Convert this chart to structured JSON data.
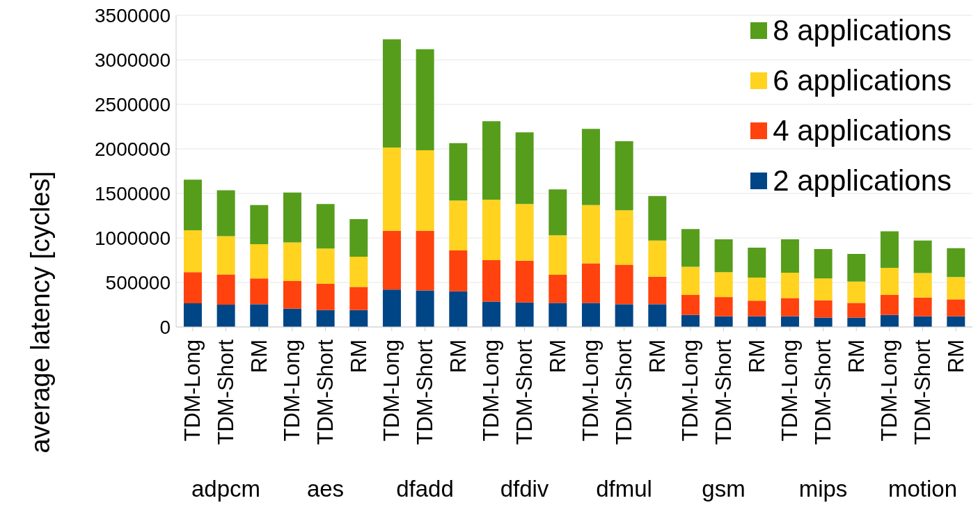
{
  "chart_data": {
    "type": "bar",
    "stacked": true,
    "ylabel": "average latency [cycles]",
    "categories": [
      "TDM-Long",
      "TDM-Short",
      "RM",
      "TDM-Long",
      "TDM-Short",
      "RM",
      "TDM-Long",
      "TDM-Short",
      "RM",
      "TDM-Long",
      "TDM-Short",
      "RM",
      "TDM-Long",
      "TDM-Short",
      "RM",
      "TDM-Long",
      "TDM-Short",
      "RM",
      "TDM-Long",
      "TDM-Short",
      "RM",
      "TDM-Long",
      "TDM-Short",
      "RM"
    ],
    "annotations": [
      "adpcm",
      "aes",
      "dfadd",
      "dfdiv",
      "dfmul",
      "gsm",
      "mips",
      "motion"
    ],
    "ylim": [
      0,
      3500000
    ],
    "yticks": [
      0,
      500000,
      1000000,
      1500000,
      2000000,
      2500000,
      3000000,
      3500000
    ],
    "grid": "y",
    "legend": "top right",
    "series": [
      {
        "name": "2 applications",
        "color": "#004586",
        "values": [
          265000,
          250000,
          255000,
          205000,
          190000,
          190000,
          420000,
          410000,
          400000,
          285000,
          275000,
          270000,
          270000,
          255000,
          255000,
          135000,
          120000,
          120000,
          120000,
          105000,
          105000,
          135000,
          120000,
          120000
        ]
      },
      {
        "name": "4 applications",
        "color": "#ff420e",
        "values": [
          350000,
          340000,
          290000,
          310000,
          295000,
          260000,
          660000,
          670000,
          460000,
          465000,
          470000,
          315000,
          445000,
          445000,
          310000,
          225000,
          215000,
          175000,
          205000,
          195000,
          165000,
          225000,
          210000,
          190000
        ]
      },
      {
        "name": "6 applications",
        "color": "#ffd320",
        "values": [
          470000,
          430000,
          385000,
          435000,
          395000,
          340000,
          935000,
          905000,
          560000,
          680000,
          635000,
          445000,
          655000,
          610000,
          405000,
          315000,
          280000,
          260000,
          285000,
          245000,
          240000,
          305000,
          275000,
          250000
        ]
      },
      {
        "name": "8 applications",
        "color": "#579d1c",
        "values": [
          570000,
          515000,
          440000,
          560000,
          500000,
          420000,
          1215000,
          1135000,
          645000,
          880000,
          805000,
          515000,
          855000,
          775000,
          500000,
          425000,
          370000,
          335000,
          375000,
          330000,
          310000,
          410000,
          365000,
          325000
        ]
      }
    ]
  }
}
